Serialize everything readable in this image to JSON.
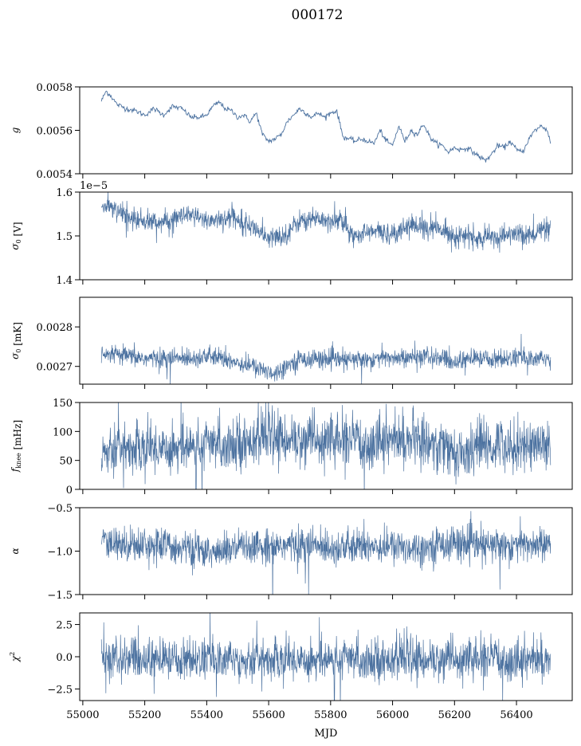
{
  "figure": {
    "title": "000172",
    "xlabel": "MJD",
    "line_color": "#4c72a0"
  },
  "chart_data": [
    {
      "type": "line",
      "name": "gain",
      "ylabel": "g",
      "ylabel_sub": "",
      "ylabel_sup": "",
      "xlim": [
        54990,
        56580
      ],
      "ylim": [
        0.0054,
        0.0058
      ],
      "yticks": [
        0.0054,
        0.0056,
        0.0058
      ],
      "ytick_labels": [
        "0.0054",
        "0.0056",
        "0.0058"
      ],
      "offset_label": "",
      "noise": 6e-06,
      "x": [
        55060,
        55075,
        55090,
        55110,
        55140,
        55170,
        55200,
        55230,
        55260,
        55290,
        55320,
        55350,
        55380,
        55400,
        55420,
        55440,
        55460,
        55480,
        55500,
        55520,
        55540,
        55560,
        55580,
        55600,
        55620,
        55640,
        55660,
        55680,
        55700,
        55720,
        55740,
        55760,
        55780,
        55800,
        55820,
        55840,
        55860,
        55880,
        55900,
        55920,
        55940,
        55960,
        55980,
        56000,
        56020,
        56040,
        56060,
        56080,
        56100,
        56120,
        56140,
        56160,
        56180,
        56200,
        56220,
        56240,
        56260,
        56280,
        56300,
        56320,
        56340,
        56360,
        56380,
        56400,
        56420,
        56440,
        56460,
        56480,
        56500,
        56510
      ],
      "y": [
        0.005735,
        0.00578,
        0.00576,
        0.00572,
        0.0057,
        0.00569,
        0.00567,
        0.0057,
        0.00567,
        0.00571,
        0.0057,
        0.00566,
        0.00566,
        0.00567,
        0.00571,
        0.00573,
        0.0057,
        0.00569,
        0.00566,
        0.00567,
        0.00564,
        0.00568,
        0.00558,
        0.00555,
        0.00556,
        0.00558,
        0.00564,
        0.00567,
        0.0057,
        0.00568,
        0.00566,
        0.00568,
        0.00566,
        0.00568,
        0.00569,
        0.00557,
        0.00556,
        0.00555,
        0.00556,
        0.00555,
        0.00554,
        0.0056,
        0.00555,
        0.00553,
        0.00562,
        0.00555,
        0.0056,
        0.00558,
        0.00563,
        0.00557,
        0.00554,
        0.00553,
        0.0055,
        0.00552,
        0.00551,
        0.00552,
        0.0055,
        0.00548,
        0.00546,
        0.00549,
        0.00553,
        0.00552,
        0.00555,
        0.00551,
        0.0055,
        0.00556,
        0.0056,
        0.00562,
        0.0056,
        0.00554
      ]
    },
    {
      "type": "line",
      "name": "sigma0-volts",
      "ylabel": "σ",
      "ylabel_sub": "0",
      "ylabel_sup": "",
      "ylabel_unit": "[V]",
      "xlim": [
        54990,
        56580
      ],
      "ylim": [
        1.4,
        1.6
      ],
      "yticks": [
        1.4,
        1.5,
        1.6
      ],
      "ytick_labels": [
        "1.4",
        "1.5",
        "1.6"
      ],
      "offset_label": "1e−5",
      "noise": 0.012,
      "x": [
        55060,
        55080,
        55100,
        55150,
        55200,
        55250,
        55300,
        55350,
        55400,
        55450,
        55500,
        55550,
        55600,
        55620,
        55650,
        55700,
        55750,
        55800,
        55830,
        55850,
        55870,
        55900,
        55950,
        56000,
        56050,
        56100,
        56150,
        56180,
        56200,
        56250,
        56280,
        56300,
        56350,
        56400,
        56450,
        56480,
        56510
      ],
      "y": [
        1.565,
        1.57,
        1.56,
        1.54,
        1.535,
        1.53,
        1.54,
        1.545,
        1.535,
        1.54,
        1.54,
        1.52,
        1.49,
        1.5,
        1.5,
        1.535,
        1.54,
        1.535,
        1.54,
        1.52,
        1.5,
        1.505,
        1.51,
        1.505,
        1.525,
        1.52,
        1.515,
        1.51,
        1.5,
        1.5,
        1.49,
        1.495,
        1.5,
        1.505,
        1.5,
        1.515,
        1.51
      ]
    },
    {
      "type": "line",
      "name": "sigma0-mK",
      "ylabel": "σ",
      "ylabel_sub": "0",
      "ylabel_sup": "",
      "ylabel_unit": "[mK]",
      "xlim": [
        54990,
        56580
      ],
      "ylim": [
        0.002655,
        0.002875
      ],
      "yticks": [
        0.0027,
        0.0028
      ],
      "ytick_labels": [
        "0.0027",
        "0.0028"
      ],
      "offset_label": "",
      "noise": 1.2e-05,
      "x": [
        55060,
        55100,
        55200,
        55300,
        55400,
        55450,
        55500,
        55550,
        55580,
        55600,
        55620,
        55650,
        55700,
        55750,
        55800,
        55850,
        55900,
        55950,
        56000,
        56050,
        56100,
        56150,
        56200,
        56250,
        56300,
        56350,
        56400,
        56450,
        56510
      ],
      "y": [
        0.002725,
        0.00273,
        0.00272,
        0.00272,
        0.002725,
        0.00272,
        0.00271,
        0.0027,
        0.00269,
        0.00269,
        0.00268,
        0.0027,
        0.002718,
        0.00272,
        0.002718,
        0.002715,
        0.002718,
        0.00272,
        0.002722,
        0.00272,
        0.002725,
        0.00272,
        0.00271,
        0.00272,
        0.00272,
        0.002718,
        0.002722,
        0.00272,
        0.002718
      ]
    },
    {
      "type": "line",
      "name": "f-knee",
      "ylabel": "f",
      "ylabel_sub": "knee",
      "ylabel_sup": "",
      "ylabel_unit": "[mHz]",
      "xlim": [
        54990,
        56580
      ],
      "ylim": [
        0,
        150
      ],
      "yticks": [
        0,
        50,
        100,
        150
      ],
      "ytick_labels": [
        "0",
        "50",
        "100",
        "150"
      ],
      "offset_label": "",
      "noise": 22,
      "x": [
        55060,
        55200,
        55300,
        55400,
        55500,
        55550,
        55600,
        55650,
        55700,
        55800,
        55880,
        55900,
        55950,
        56000,
        56100,
        56150,
        56200,
        56250,
        56280,
        56300,
        56350,
        56400,
        56450,
        56510
      ],
      "y": [
        70,
        72,
        73,
        76,
        80,
        85,
        90,
        88,
        85,
        85,
        82,
        75,
        88,
        86,
        84,
        78,
        62,
        60,
        85,
        70,
        80,
        75,
        77,
        80
      ]
    },
    {
      "type": "line",
      "name": "alpha",
      "ylabel": "α",
      "ylabel_sub": "",
      "ylabel_sup": "",
      "ylabel_unit": "",
      "xlim": [
        54990,
        56580
      ],
      "ylim": [
        -1.5,
        -0.5
      ],
      "yticks": [
        -1.5,
        -1.0,
        -0.5
      ],
      "ytick_labels": [
        "−1.5",
        "−1.0",
        "−0.5"
      ],
      "offset_label": "",
      "noise": 0.1,
      "x": [
        55060,
        55200,
        55300,
        55400,
        55450,
        55500,
        55600,
        55700,
        55800,
        55880,
        55900,
        55950,
        56000,
        56100,
        56150,
        56200,
        56250,
        56300,
        56350,
        56400,
        56510
      ],
      "y": [
        -0.92,
        -0.92,
        -0.95,
        -1.02,
        -1.0,
        -0.97,
        -0.94,
        -0.93,
        -0.95,
        -0.97,
        -0.93,
        -0.94,
        -0.95,
        -0.96,
        -0.92,
        -0.9,
        -0.92,
        -0.95,
        -0.92,
        -0.93,
        -0.92
      ]
    },
    {
      "type": "line",
      "name": "chi-squared",
      "ylabel": "χ",
      "ylabel_sub": "",
      "ylabel_sup": "2",
      "ylabel_unit": "",
      "xlim": [
        54990,
        56580
      ],
      "ylim": [
        -3.4,
        3.4
      ],
      "yticks": [
        -2.5,
        0.0,
        2.5
      ],
      "ytick_labels": [
        "−2.5",
        "0.0",
        "2.5"
      ],
      "offset_label": "",
      "noise": 0.8,
      "x": [
        55060,
        56510
      ],
      "y": [
        -0.2,
        -0.2
      ]
    }
  ],
  "xaxis": {
    "ticks": [
      55000,
      55200,
      55400,
      55600,
      55800,
      56000,
      56200,
      56400
    ],
    "tick_labels": [
      "55000",
      "55200",
      "55400",
      "55600",
      "55800",
      "56000",
      "56200",
      "56400"
    ]
  }
}
